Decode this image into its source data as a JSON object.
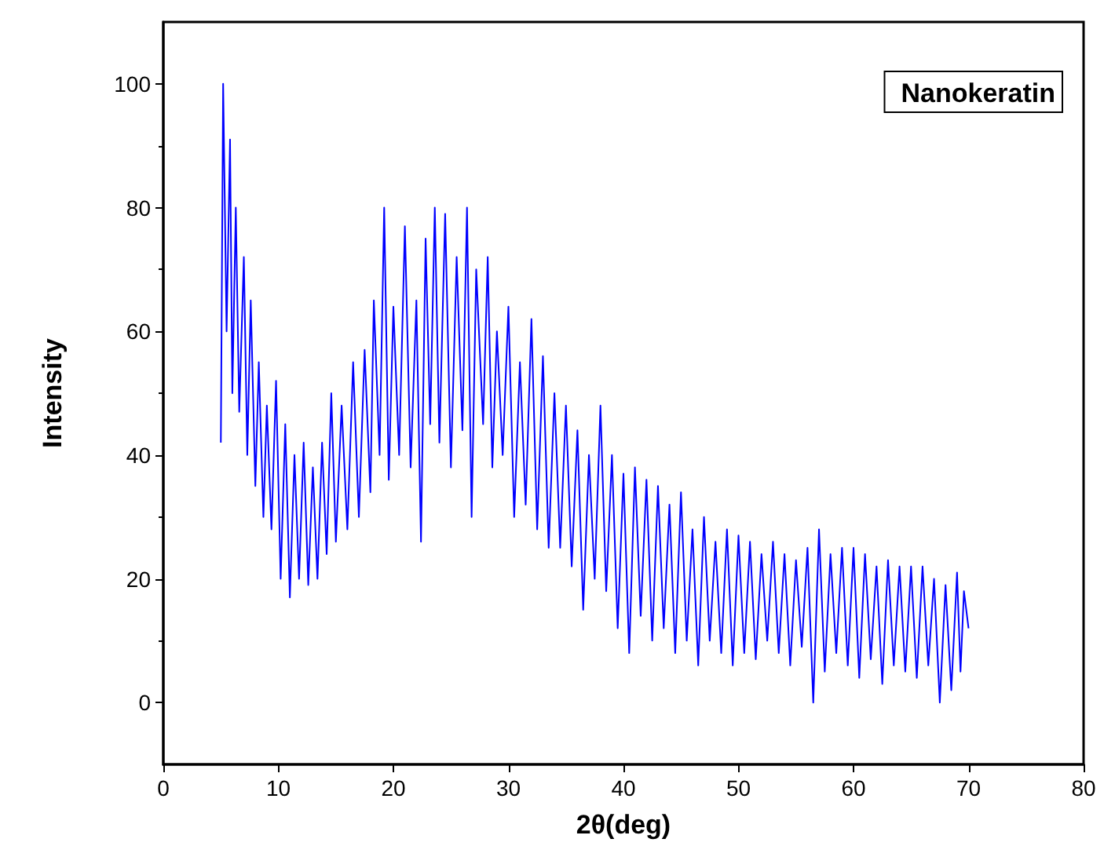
{
  "chart_data": {
    "type": "line",
    "xlabel": "2θ(deg)",
    "ylabel": "Intensity",
    "annotations": [
      "Nanokeratin"
    ],
    "xlim": [
      0,
      80
    ],
    "xticks": [
      0,
      10,
      20,
      30,
      40,
      50,
      60,
      70,
      80
    ],
    "ylim": [
      -10,
      110
    ],
    "yticks": [
      0,
      20,
      40,
      60,
      80,
      100
    ],
    "grid": false,
    "marker": "none",
    "x": [
      5.0,
      5.2,
      5.5,
      5.8,
      6.0,
      6.3,
      6.6,
      7.0,
      7.3,
      7.6,
      8.0,
      8.3,
      8.7,
      9.0,
      9.4,
      9.8,
      10.2,
      10.6,
      11.0,
      11.4,
      11.8,
      12.2,
      12.6,
      13.0,
      13.4,
      13.8,
      14.2,
      14.6,
      15.0,
      15.5,
      16.0,
      16.5,
      17.0,
      17.5,
      18.0,
      18.3,
      18.8,
      19.2,
      19.6,
      20.0,
      20.5,
      21.0,
      21.5,
      22.0,
      22.4,
      22.8,
      23.2,
      23.6,
      24.0,
      24.5,
      25.0,
      25.5,
      26.0,
      26.4,
      26.8,
      27.2,
      27.8,
      28.2,
      28.6,
      29.0,
      29.5,
      30.0,
      30.5,
      31.0,
      31.5,
      32.0,
      32.5,
      33.0,
      33.5,
      34.0,
      34.5,
      35.0,
      35.5,
      36.0,
      36.5,
      37.0,
      37.5,
      38.0,
      38.5,
      39.0,
      39.5,
      40.0,
      40.5,
      41.0,
      41.5,
      42.0,
      42.5,
      43.0,
      43.5,
      44.0,
      44.5,
      45.0,
      45.5,
      46.0,
      46.5,
      47.0,
      47.5,
      48.0,
      48.5,
      49.0,
      49.5,
      50.0,
      50.5,
      51.0,
      51.5,
      52.0,
      52.5,
      53.0,
      53.5,
      54.0,
      54.5,
      55.0,
      55.5,
      56.0,
      56.5,
      57.0,
      57.5,
      58.0,
      58.5,
      59.0,
      59.5,
      60.0,
      60.5,
      61.0,
      61.5,
      62.0,
      62.5,
      63.0,
      63.5,
      64.0,
      64.5,
      65.0,
      65.5,
      66.0,
      66.5,
      67.0,
      67.5,
      68.0,
      68.5,
      69.0,
      69.3,
      69.6,
      70.0
    ],
    "series": [
      {
        "color": "#0000ff",
        "values": [
          42,
          100,
          60,
          91,
          50,
          80,
          47,
          72,
          40,
          65,
          35,
          55,
          30,
          48,
          28,
          52,
          20,
          45,
          17,
          40,
          20,
          42,
          19,
          38,
          20,
          42,
          24,
          50,
          26,
          48,
          28,
          55,
          30,
          57,
          34,
          65,
          40,
          80,
          36,
          64,
          40,
          77,
          38,
          65,
          26,
          75,
          45,
          80,
          42,
          79,
          38,
          72,
          44,
          80,
          30,
          70,
          45,
          72,
          38,
          60,
          40,
          64,
          30,
          55,
          32,
          62,
          28,
          56,
          25,
          50,
          25,
          48,
          22,
          44,
          15,
          40,
          20,
          48,
          18,
          40,
          12,
          37,
          8,
          38,
          14,
          36,
          10,
          35,
          12,
          32,
          8,
          34,
          10,
          28,
          6,
          30,
          10,
          26,
          8,
          28,
          6,
          27,
          8,
          26,
          7,
          24,
          10,
          26,
          8,
          24,
          6,
          23,
          9,
          25,
          0,
          28,
          5,
          24,
          8,
          25,
          6,
          25,
          4,
          24,
          7,
          22,
          3,
          23,
          6,
          22,
          5,
          22,
          4,
          22,
          6,
          20,
          0,
          19,
          2,
          21,
          5,
          18,
          12
        ]
      }
    ]
  }
}
